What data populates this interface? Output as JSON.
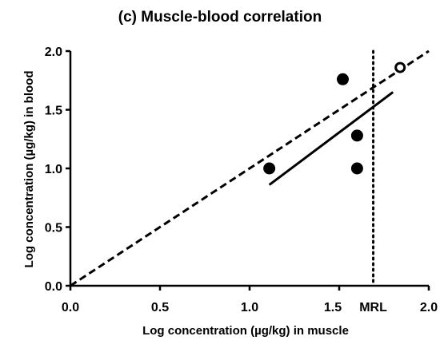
{
  "chart_data": {
    "type": "scatter",
    "title": "(c) Muscle-blood correlation",
    "xlabel": "Log concentration (µg/kg) in muscle",
    "ylabel": "Log concentration (µg/kg) in blood",
    "xlim": [
      0,
      2.0
    ],
    "ylim": [
      0,
      2.0
    ],
    "xticks": [
      {
        "value": 0.0,
        "label": "0.0"
      },
      {
        "value": 0.5,
        "label": "0.5"
      },
      {
        "value": 1.0,
        "label": "1.0"
      },
      {
        "value": 1.5,
        "label": "1.5"
      },
      {
        "value": 2.0,
        "label": "2.0"
      }
    ],
    "yticks": [
      {
        "value": 0.0,
        "label": "0.0"
      },
      {
        "value": 0.5,
        "label": "0.5"
      },
      {
        "value": 1.0,
        "label": "1.0"
      },
      {
        "value": 1.5,
        "label": "1.5"
      },
      {
        "value": 2.0,
        "label": "2.0"
      }
    ],
    "grid": false,
    "points": [
      {
        "x": 1.11,
        "y": 1.0,
        "style": "filled"
      },
      {
        "x": 1.6,
        "y": 1.28,
        "style": "filled"
      },
      {
        "x": 1.6,
        "y": 1.0,
        "style": "filled"
      },
      {
        "x": 1.52,
        "y": 1.76,
        "style": "filled"
      },
      {
        "x": 1.84,
        "y": 1.86,
        "style": "open"
      }
    ],
    "lines": [
      {
        "kind": "identity",
        "style": "dashed",
        "x": [
          0,
          2.0
        ],
        "y": [
          0,
          2.0
        ]
      },
      {
        "kind": "regression",
        "style": "solid",
        "x": [
          1.11,
          1.8
        ],
        "y": [
          0.86,
          1.65
        ]
      }
    ],
    "reference_lines": [
      {
        "axis": "x",
        "value": 1.69,
        "label": "MRL",
        "style": "dotted"
      }
    ],
    "colors": {
      "marks": "#000000",
      "background": "#ffffff"
    }
  }
}
